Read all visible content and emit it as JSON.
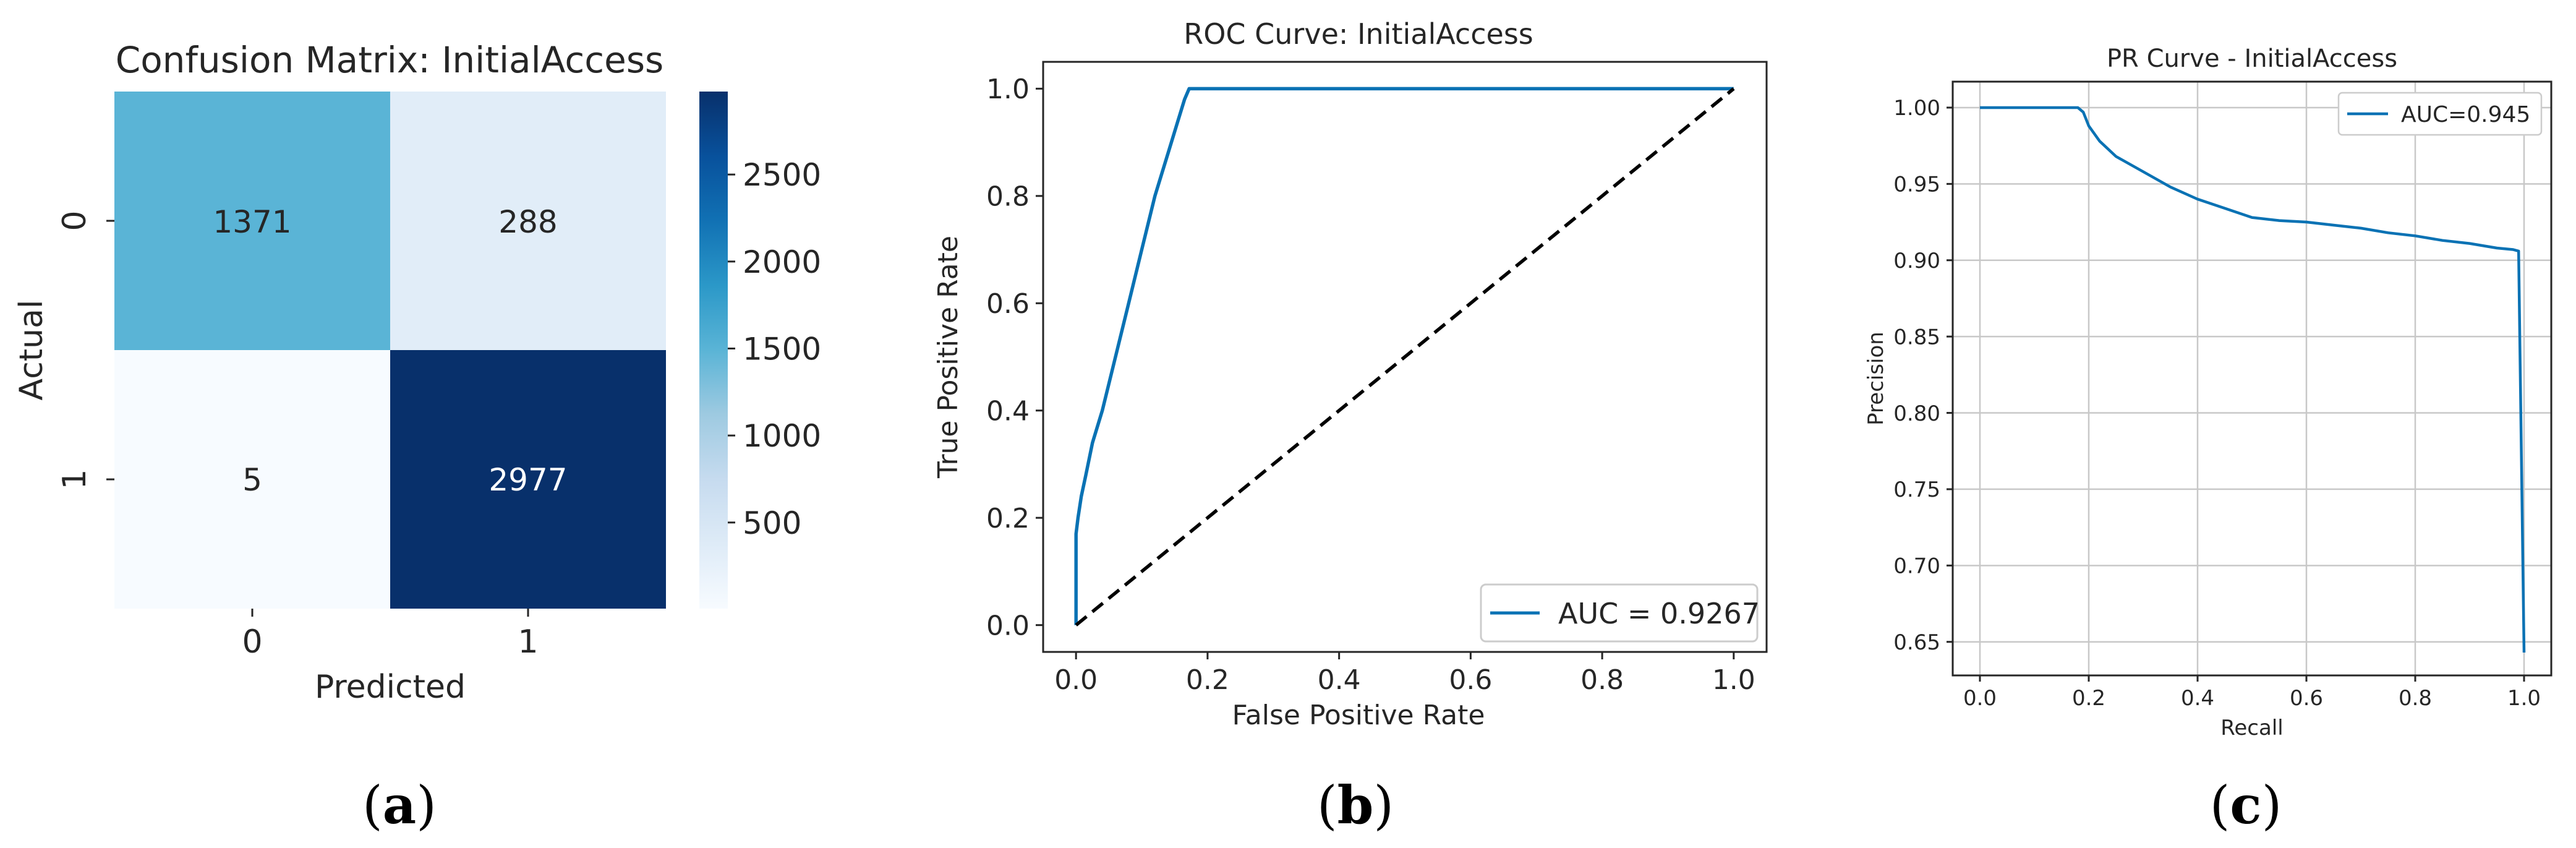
{
  "panel_labels": [
    "a",
    "b",
    "c"
  ],
  "colors": {
    "line": "#0a72b4",
    "diag": "#000000",
    "grid": "#c8c8c8",
    "cm_low": "#f7fbff",
    "cm_high": "#08306b"
  },
  "chart_data": [
    {
      "type": "heatmap",
      "title": "Confusion Matrix: InitialAccess",
      "xlabel": "Predicted",
      "ylabel": "Actual",
      "row_labels": [
        "0",
        "1"
      ],
      "col_labels": [
        "0",
        "1"
      ],
      "values": [
        [
          1371,
          288
        ],
        [
          5,
          2977
        ]
      ],
      "cell_labels": [
        [
          "1371",
          "288"
        ],
        [
          "5",
          "2977"
        ]
      ],
      "colorbar": {
        "min": 5,
        "max": 2977,
        "ticks": [
          500,
          1000,
          1500,
          2000,
          2500
        ],
        "tick_labels": [
          "500",
          "1000",
          "1500",
          "2000",
          "2500"
        ]
      }
    },
    {
      "type": "line",
      "title": "ROC Curve: InitialAccess",
      "xlabel": "False Positive Rate",
      "ylabel": "True Positive Rate",
      "xlim": [
        -0.05,
        1.05
      ],
      "ylim": [
        -0.05,
        1.05
      ],
      "xticks": [
        0.0,
        0.2,
        0.4,
        0.6,
        0.8,
        1.0
      ],
      "xtick_labels": [
        "0.0",
        "0.2",
        "0.4",
        "0.6",
        "0.8",
        "1.0"
      ],
      "yticks": [
        0.0,
        0.2,
        0.4,
        0.6,
        0.8,
        1.0
      ],
      "ytick_labels": [
        "0.0",
        "0.2",
        "0.4",
        "0.6",
        "0.8",
        "1.0"
      ],
      "legend": "lower right",
      "series": [
        {
          "name": "AUC = 0.9267",
          "style": "solid",
          "x": [
            0.0,
            0.0,
            0.003,
            0.008,
            0.015,
            0.025,
            0.04,
            0.06,
            0.08,
            0.1,
            0.12,
            0.14,
            0.155,
            0.165,
            0.172,
            0.173,
            0.4,
            1.0
          ],
          "y": [
            0.0,
            0.17,
            0.2,
            0.24,
            0.28,
            0.34,
            0.4,
            0.5,
            0.6,
            0.7,
            0.8,
            0.88,
            0.94,
            0.98,
            1.0,
            1.0,
            1.0,
            1.0
          ]
        },
        {
          "name": "diagonal",
          "style": "dashed",
          "x": [
            0.0,
            1.0
          ],
          "y": [
            0.0,
            1.0
          ]
        }
      ]
    },
    {
      "type": "line",
      "title": "PR Curve - InitialAccess",
      "xlabel": "Recall",
      "ylabel": "Precision",
      "grid": true,
      "xlim": [
        -0.05,
        1.05
      ],
      "ylim": [
        0.628,
        1.017
      ],
      "xticks": [
        0.0,
        0.2,
        0.4,
        0.6,
        0.8,
        1.0
      ],
      "xtick_labels": [
        "0.0",
        "0.2",
        "0.4",
        "0.6",
        "0.8",
        "1.0"
      ],
      "yticks": [
        0.65,
        0.7,
        0.75,
        0.8,
        0.85,
        0.9,
        0.95,
        1.0
      ],
      "ytick_labels": [
        "0.65",
        "0.70",
        "0.75",
        "0.80",
        "0.85",
        "0.90",
        "0.95",
        "1.00"
      ],
      "legend": "upper right",
      "series": [
        {
          "name": "AUC=0.945",
          "style": "solid",
          "x": [
            0.0,
            0.18,
            0.19,
            0.2,
            0.22,
            0.25,
            0.3,
            0.35,
            0.4,
            0.45,
            0.5,
            0.55,
            0.6,
            0.65,
            0.7,
            0.75,
            0.8,
            0.85,
            0.9,
            0.95,
            0.98,
            0.99,
            0.99,
            1.0
          ],
          "y": [
            1.0,
            1.0,
            0.997,
            0.988,
            0.978,
            0.968,
            0.958,
            0.948,
            0.94,
            0.934,
            0.928,
            0.926,
            0.925,
            0.923,
            0.921,
            0.918,
            0.916,
            0.913,
            0.911,
            0.908,
            0.907,
            0.906,
            0.906,
            0.643
          ]
        }
      ]
    }
  ]
}
